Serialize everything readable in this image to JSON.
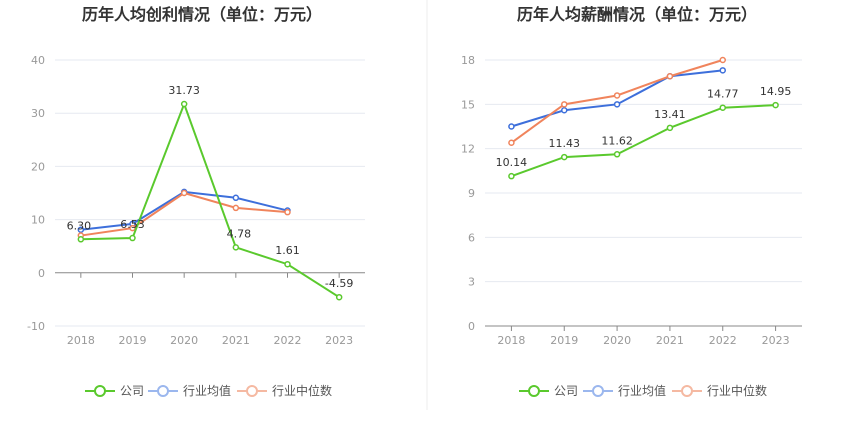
{
  "charts": [
    {
      "title": "历年人均创利情况（单位：万元）",
      "type": "line",
      "categories": [
        "2018",
        "2019",
        "2020",
        "2021",
        "2022",
        "2023"
      ],
      "yticks": [
        "-10",
        "0",
        "10",
        "20",
        "30",
        "40"
      ],
      "ylim": [
        -10,
        40
      ],
      "series": [
        {
          "name": "公司",
          "color": "#5ac92d",
          "values": [
            6.3,
            6.53,
            31.73,
            4.78,
            1.61,
            -4.59
          ],
          "labels": [
            "6.30",
            "6.53",
            "31.73",
            "4.78",
            "1.61",
            "-4.59"
          ]
        },
        {
          "name": "行业均值",
          "color": "#3d6fdb",
          "values": [
            8.1,
            9.2,
            15.2,
            14.1,
            11.7,
            null
          ]
        },
        {
          "name": "行业中位数",
          "color": "#f0845c",
          "values": [
            7.0,
            8.4,
            15.0,
            12.2,
            11.4,
            null
          ]
        }
      ]
    },
    {
      "title": "历年人均薪酬情况（单位：万元）",
      "type": "line",
      "categories": [
        "2018",
        "2019",
        "2020",
        "2021",
        "2022",
        "2023"
      ],
      "yticks": [
        "0",
        "3",
        "6",
        "9",
        "12",
        "15",
        "18"
      ],
      "ylim": [
        0,
        18
      ],
      "series": [
        {
          "name": "公司",
          "color": "#5ac92d",
          "values": [
            10.14,
            11.43,
            11.62,
            13.41,
            14.77,
            14.95
          ],
          "labels": [
            "10.14",
            "11.43",
            "11.62",
            "13.41",
            "14.77",
            "14.95"
          ]
        },
        {
          "name": "行业均值",
          "color": "#3d6fdb",
          "values": [
            13.5,
            14.6,
            15.0,
            16.9,
            17.3,
            null
          ]
        },
        {
          "name": "行业中位数",
          "color": "#f0845c",
          "values": [
            12.4,
            15.0,
            15.6,
            16.9,
            18.0,
            null
          ]
        }
      ]
    }
  ],
  "legend": {
    "company": "公司",
    "industry_avg": "行业均值",
    "industry_median": "行业中位数"
  }
}
